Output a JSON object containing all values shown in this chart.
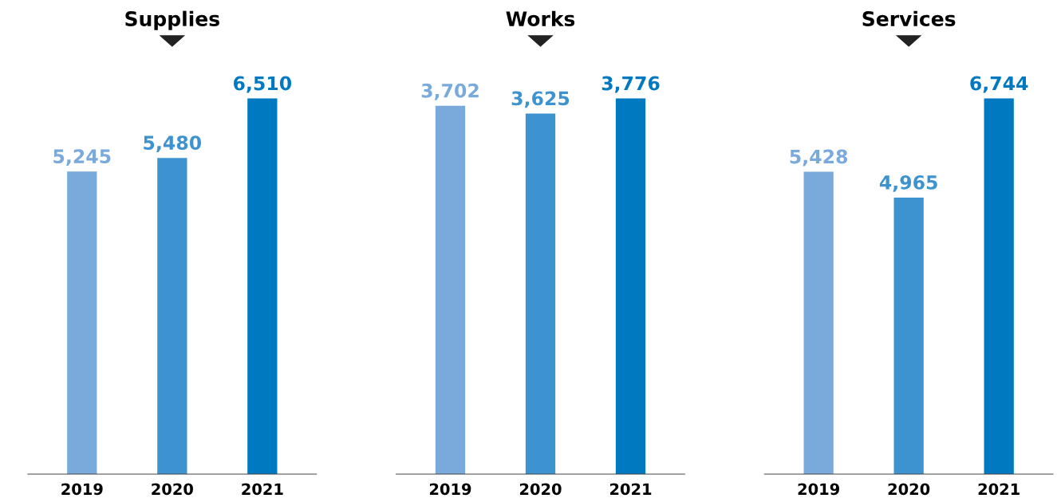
{
  "chart_data": [
    {
      "type": "bar",
      "title": "Supplies",
      "categories": [
        "2019",
        "2020",
        "2021"
      ],
      "values": [
        5245,
        5480,
        6510
      ],
      "value_labels": [
        "5,245",
        "5,480",
        "6,510"
      ],
      "colors": [
        "#7aaadb",
        "#3d93d0",
        "#0079c1"
      ],
      "grid": false,
      "legend": false
    },
    {
      "type": "bar",
      "title": "Works",
      "categories": [
        "2019",
        "2020",
        "2021"
      ],
      "values": [
        3702,
        3625,
        3776
      ],
      "value_labels": [
        "3,702",
        "3,625",
        "3,776"
      ],
      "colors": [
        "#7aaadb",
        "#3d93d0",
        "#0079c1"
      ],
      "grid": false,
      "legend": false
    },
    {
      "type": "bar",
      "title": "Services",
      "categories": [
        "2019",
        "2020",
        "2021"
      ],
      "values": [
        5428,
        4965,
        6744
      ],
      "value_labels": [
        "5,428",
        "4,965",
        "6,744"
      ],
      "colors": [
        "#7aaadb",
        "#3d93d0",
        "#0079c1"
      ],
      "grid": false,
      "legend": false
    }
  ]
}
